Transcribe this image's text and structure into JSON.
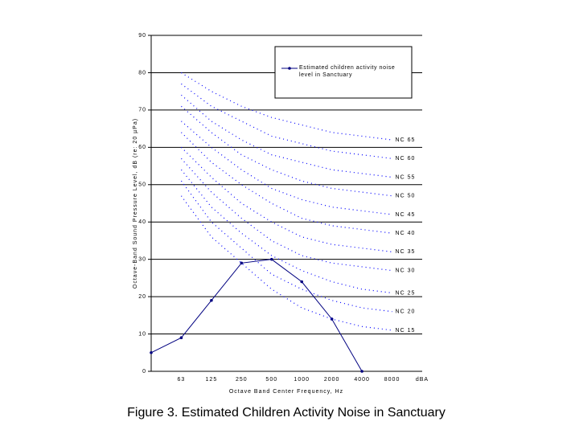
{
  "chart_data": {
    "type": "line",
    "caption": "Figure 3.  Estimated Children Activity Noise in Sanctuary",
    "x_label": "Octave Band Center Frequency, Hz",
    "y_label": "Octave-Band Sound Pressure Level, dB (re: 20 µPa)",
    "categories": [
      null,
      "63",
      "125",
      "250",
      "500",
      "1000",
      "2000",
      "4000",
      "8000",
      "dBA"
    ],
    "ylim": [
      0,
      90
    ],
    "yticks": [
      0,
      10,
      20,
      30,
      40,
      50,
      60,
      70,
      80,
      90
    ],
    "grid": true,
    "legend": "top-right",
    "series": [
      {
        "name": "Estimated children activity noise level in Sanctuary",
        "color": "#000080",
        "style": "solid",
        "values": [
          5,
          9,
          19,
          29,
          30,
          24,
          14,
          0,
          null,
          null
        ]
      },
      {
        "name": "NC 65",
        "color": "#0000ff",
        "style": "dotted",
        "values": [
          null,
          80,
          75,
          71,
          68,
          66,
          64,
          63,
          62,
          null
        ]
      },
      {
        "name": "NC 60",
        "color": "#0000ff",
        "style": "dotted",
        "values": [
          null,
          77,
          71,
          67,
          63,
          61,
          59,
          58,
          57,
          null
        ]
      },
      {
        "name": "NC 55",
        "color": "#0000ff",
        "style": "dotted",
        "values": [
          null,
          74,
          67,
          62,
          58,
          56,
          54,
          53,
          52,
          null
        ]
      },
      {
        "name": "NC 50",
        "color": "#0000ff",
        "style": "dotted",
        "values": [
          null,
          71,
          64,
          58,
          54,
          51,
          49,
          48,
          47,
          null
        ]
      },
      {
        "name": "NC 45",
        "color": "#0000ff",
        "style": "dotted",
        "values": [
          null,
          67,
          60,
          54,
          49,
          46,
          44,
          43,
          42,
          null
        ]
      },
      {
        "name": "NC 40",
        "color": "#0000ff",
        "style": "dotted",
        "values": [
          null,
          64,
          56,
          50,
          45,
          41,
          39,
          38,
          37,
          null
        ]
      },
      {
        "name": "NC 35",
        "color": "#0000ff",
        "style": "dotted",
        "values": [
          null,
          60,
          52,
          45,
          40,
          36,
          34,
          33,
          32,
          null
        ]
      },
      {
        "name": "NC 30",
        "color": "#0000ff",
        "style": "dotted",
        "values": [
          null,
          57,
          48,
          41,
          35,
          31,
          29,
          28,
          27,
          null
        ]
      },
      {
        "name": "NC 25",
        "color": "#0000ff",
        "style": "dotted",
        "values": [
          null,
          54,
          44,
          37,
          31,
          27,
          24,
          22,
          21,
          null
        ]
      },
      {
        "name": "NC 20",
        "color": "#0000ff",
        "style": "dotted",
        "values": [
          null,
          51,
          40,
          33,
          26,
          22,
          19,
          17,
          16,
          null
        ]
      },
      {
        "name": "NC 15",
        "color": "#0000ff",
        "style": "dotted",
        "values": [
          null,
          47,
          36,
          29,
          22,
          17,
          14,
          12,
          11,
          null
        ]
      }
    ]
  }
}
